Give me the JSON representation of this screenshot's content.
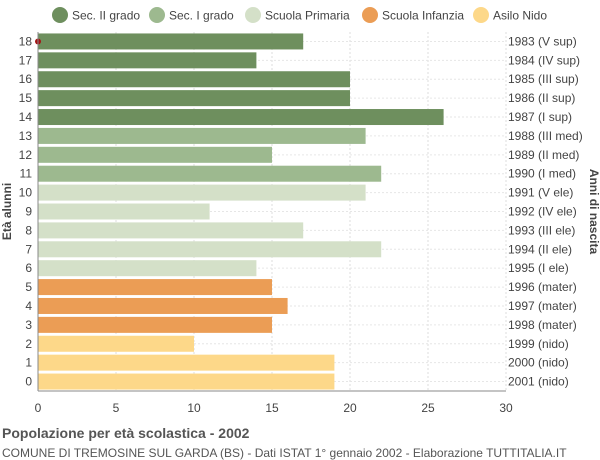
{
  "chart_data": {
    "type": "bar",
    "orientation": "horizontal",
    "title": "Popolazione per età scolastica - 2002",
    "subtitle": "COMUNE DI TREMOSINE SUL GARDA (BS) - Dati ISTAT 1° gennaio 2002 - Elaborazione TUTTITALIA.IT",
    "ylabel_left": "Età alunni",
    "ylabel_right": "Anni di nascita",
    "xlim": [
      0,
      30
    ],
    "xticks": [
      0,
      5,
      10,
      15,
      20,
      25,
      30
    ],
    "grid": true,
    "legend_position": "top",
    "legend": [
      {
        "name": "Sec. II grado",
        "color": "#6e8f5e"
      },
      {
        "name": "Sec. I grado",
        "color": "#9db98f"
      },
      {
        "name": "Scuola Primaria",
        "color": "#d4e0c8"
      },
      {
        "name": "Scuola Infanzia",
        "color": "#eb9d55"
      },
      {
        "name": "Asilo Nido",
        "color": "#fdd889"
      }
    ],
    "bars": [
      {
        "age": "18",
        "birth": "1983 (V sup)",
        "value": 17,
        "group": 0
      },
      {
        "age": "17",
        "birth": "1984 (IV sup)",
        "value": 14,
        "group": 0
      },
      {
        "age": "16",
        "birth": "1985 (III sup)",
        "value": 20,
        "group": 0
      },
      {
        "age": "15",
        "birth": "1986 (II sup)",
        "value": 20,
        "group": 0
      },
      {
        "age": "14",
        "birth": "1987 (I sup)",
        "value": 26,
        "group": 0
      },
      {
        "age": "13",
        "birth": "1988 (III med)",
        "value": 21,
        "group": 1
      },
      {
        "age": "12",
        "birth": "1989 (II med)",
        "value": 15,
        "group": 1
      },
      {
        "age": "11",
        "birth": "1990 (I med)",
        "value": 22,
        "group": 1
      },
      {
        "age": "10",
        "birth": "1991 (V ele)",
        "value": 21,
        "group": 2
      },
      {
        "age": "9",
        "birth": "1992 (IV ele)",
        "value": 11,
        "group": 2
      },
      {
        "age": "8",
        "birth": "1993 (III ele)",
        "value": 17,
        "group": 2
      },
      {
        "age": "7",
        "birth": "1994 (II ele)",
        "value": 22,
        "group": 2
      },
      {
        "age": "6",
        "birth": "1995 (I ele)",
        "value": 14,
        "group": 2
      },
      {
        "age": "5",
        "birth": "1996 (mater)",
        "value": 15,
        "group": 3
      },
      {
        "age": "4",
        "birth": "1997 (mater)",
        "value": 16,
        "group": 3
      },
      {
        "age": "3",
        "birth": "1998 (mater)",
        "value": 15,
        "group": 3
      },
      {
        "age": "2",
        "birth": "1999 (nido)",
        "value": 10,
        "group": 4
      },
      {
        "age": "1",
        "birth": "2000 (nido)",
        "value": 19,
        "group": 4
      },
      {
        "age": "0",
        "birth": "2001 (nido)",
        "value": 19,
        "group": 4
      }
    ]
  }
}
